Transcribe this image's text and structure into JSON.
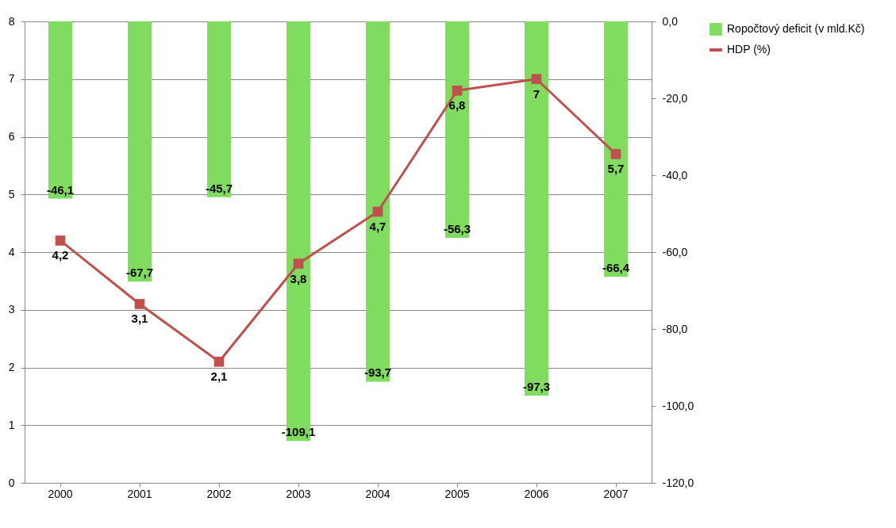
{
  "chart_data": {
    "type": "bar",
    "categories": [
      "2000",
      "2001",
      "2002",
      "2003",
      "2004",
      "2005",
      "2006",
      "2007"
    ],
    "series": [
      {
        "name": "Ropočtový deficit (v mld.Kč)",
        "axis": "y2",
        "color": "#7fdc5e",
        "values": [
          -46.1,
          -67.7,
          -45.7,
          -109.1,
          -93.7,
          -56.3,
          -97.3,
          -66.4
        ],
        "value_labels": [
          "-46,1",
          "-67,7",
          "-45,7",
          "-109,1",
          "-93,7",
          "-56,3",
          "-97,3",
          "-66,4"
        ]
      },
      {
        "name": "HDP (%)",
        "type": "line",
        "color": "#c0504d",
        "marker": "square",
        "values": [
          4.2,
          3.1,
          2.1,
          3.8,
          4.7,
          6.8,
          7,
          5.7
        ],
        "value_labels": [
          "4,2",
          "3,1",
          "2,1",
          "3,8",
          "4,7",
          "6,8",
          "7",
          "5,7"
        ]
      }
    ],
    "ylim": [
      0,
      8
    ],
    "yticks": [
      0,
      1,
      2,
      3,
      4,
      5,
      6,
      7,
      8
    ],
    "y2lim": [
      -120,
      0
    ],
    "y2ticks": [
      {
        "value": -120,
        "label": "-120,0"
      },
      {
        "value": -100,
        "label": "-100,0"
      },
      {
        "value": -80,
        "label": "-80,0"
      },
      {
        "value": -60,
        "label": "-60,0"
      },
      {
        "value": -40,
        "label": "-40,0"
      },
      {
        "value": -20,
        "label": "-20,0"
      },
      {
        "value": 0,
        "label": "0,0"
      }
    ],
    "grid": "y",
    "legend": "right"
  }
}
